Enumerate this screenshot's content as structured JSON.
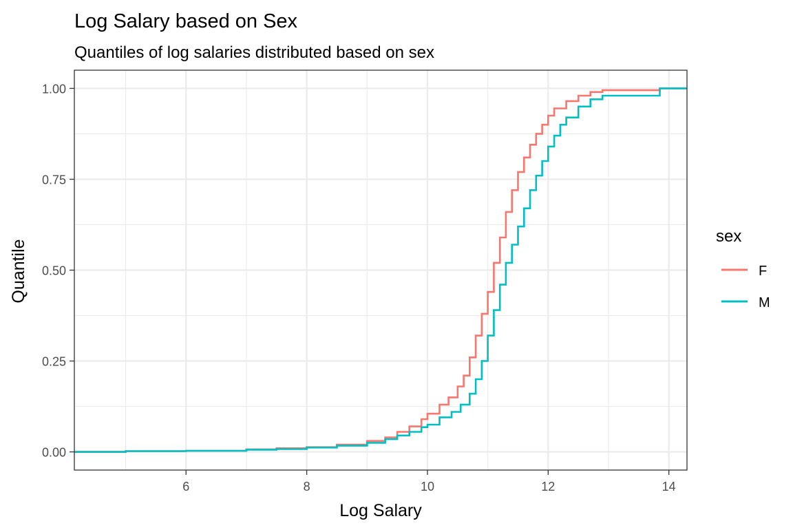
{
  "chart_data": {
    "type": "line",
    "step": true,
    "title": "Log Salary based on Sex",
    "subtitle": "Quantiles of log salaries distributed based on sex",
    "xlabel": "Log Salary",
    "ylabel": "Quantile",
    "xlim": [
      4.15,
      14.3
    ],
    "ylim": [
      -0.05,
      1.05
    ],
    "x_ticks": [
      6,
      8,
      10,
      12,
      14
    ],
    "y_ticks": [
      0.0,
      0.25,
      0.5,
      0.75,
      1.0
    ],
    "y_tick_labels": [
      "0.00",
      "0.25",
      "0.50",
      "0.75",
      "1.00"
    ],
    "grid": true,
    "legend": {
      "title": "sex",
      "position": "right"
    },
    "series": [
      {
        "name": "F",
        "color": "#F8766D",
        "points": [
          [
            4.15,
            0.0
          ],
          [
            4.6,
            0.0
          ],
          [
            5.0,
            0.002
          ],
          [
            6.0,
            0.003
          ],
          [
            7.0,
            0.007
          ],
          [
            7.5,
            0.01
          ],
          [
            8.0,
            0.013
          ],
          [
            8.5,
            0.02
          ],
          [
            9.0,
            0.03
          ],
          [
            9.3,
            0.04
          ],
          [
            9.5,
            0.055
          ],
          [
            9.7,
            0.07
          ],
          [
            9.9,
            0.09
          ],
          [
            10.0,
            0.105
          ],
          [
            10.2,
            0.13
          ],
          [
            10.35,
            0.15
          ],
          [
            10.5,
            0.18
          ],
          [
            10.6,
            0.21
          ],
          [
            10.7,
            0.26
          ],
          [
            10.8,
            0.32
          ],
          [
            10.9,
            0.38
          ],
          [
            11.0,
            0.44
          ],
          [
            11.1,
            0.52
          ],
          [
            11.2,
            0.59
          ],
          [
            11.3,
            0.66
          ],
          [
            11.4,
            0.72
          ],
          [
            11.5,
            0.77
          ],
          [
            11.6,
            0.81
          ],
          [
            11.7,
            0.845
          ],
          [
            11.8,
            0.875
          ],
          [
            11.9,
            0.9
          ],
          [
            12.0,
            0.925
          ],
          [
            12.1,
            0.945
          ],
          [
            12.3,
            0.965
          ],
          [
            12.5,
            0.98
          ],
          [
            12.7,
            0.99
          ],
          [
            12.9,
            0.995
          ],
          [
            13.5,
            0.995
          ],
          [
            13.85,
            1.0
          ],
          [
            14.3,
            1.0
          ]
        ]
      },
      {
        "name": "M",
        "color": "#00BFC4",
        "points": [
          [
            4.15,
            0.0
          ],
          [
            4.6,
            0.0
          ],
          [
            5.0,
            0.002
          ],
          [
            6.0,
            0.003
          ],
          [
            7.0,
            0.006
          ],
          [
            7.5,
            0.008
          ],
          [
            8.0,
            0.012
          ],
          [
            8.5,
            0.017
          ],
          [
            9.0,
            0.025
          ],
          [
            9.3,
            0.035
          ],
          [
            9.5,
            0.045
          ],
          [
            9.7,
            0.055
          ],
          [
            9.9,
            0.068
          ],
          [
            10.0,
            0.075
          ],
          [
            10.2,
            0.095
          ],
          [
            10.4,
            0.11
          ],
          [
            10.55,
            0.13
          ],
          [
            10.7,
            0.16
          ],
          [
            10.8,
            0.2
          ],
          [
            10.9,
            0.25
          ],
          [
            11.0,
            0.32
          ],
          [
            11.1,
            0.39
          ],
          [
            11.2,
            0.46
          ],
          [
            11.3,
            0.52
          ],
          [
            11.4,
            0.57
          ],
          [
            11.5,
            0.62
          ],
          [
            11.6,
            0.67
          ],
          [
            11.7,
            0.72
          ],
          [
            11.8,
            0.76
          ],
          [
            11.9,
            0.8
          ],
          [
            12.0,
            0.84
          ],
          [
            12.1,
            0.87
          ],
          [
            12.2,
            0.9
          ],
          [
            12.3,
            0.92
          ],
          [
            12.5,
            0.95
          ],
          [
            12.7,
            0.97
          ],
          [
            12.9,
            0.98
          ],
          [
            13.5,
            0.98
          ],
          [
            13.8,
            0.98
          ],
          [
            13.85,
            1.0
          ],
          [
            14.3,
            1.0
          ]
        ]
      }
    ]
  }
}
